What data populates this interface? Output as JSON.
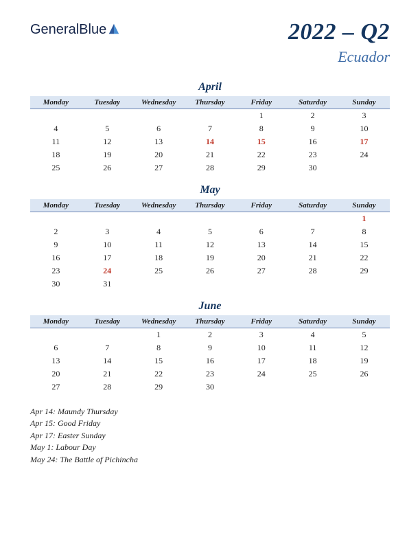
{
  "brand": {
    "part1": "General",
    "part2": "Blue"
  },
  "title": {
    "main": "2022 – Q2",
    "country": "Ecuador"
  },
  "title_colors": {
    "main": "#15365f",
    "sub": "#3d6ca8"
  },
  "header_bg": "#dce6f3",
  "header_border": "#6c86b3",
  "holiday_color": "#c0392b",
  "text_color": "#1e1e1e",
  "background_color": "#ffffff",
  "day_headers": [
    "Monday",
    "Tuesday",
    "Wednesday",
    "Thursday",
    "Friday",
    "Saturday",
    "Sunday"
  ],
  "months": [
    {
      "name": "April",
      "weeks": [
        [
          "",
          "",
          "",
          "",
          "1",
          "2",
          "3"
        ],
        [
          "4",
          "5",
          "6",
          "7",
          "8",
          "9",
          "10"
        ],
        [
          "11",
          "12",
          "13",
          "14",
          "15",
          "16",
          "17"
        ],
        [
          "18",
          "19",
          "20",
          "21",
          "22",
          "23",
          "24"
        ],
        [
          "25",
          "26",
          "27",
          "28",
          "29",
          "30",
          ""
        ]
      ],
      "holidays": [
        [
          2,
          3
        ],
        [
          2,
          4
        ],
        [
          2,
          6
        ]
      ]
    },
    {
      "name": "May",
      "weeks": [
        [
          "",
          "",
          "",
          "",
          "",
          "",
          "1"
        ],
        [
          "2",
          "3",
          "4",
          "5",
          "6",
          "7",
          "8"
        ],
        [
          "9",
          "10",
          "11",
          "12",
          "13",
          "14",
          "15"
        ],
        [
          "16",
          "17",
          "18",
          "19",
          "20",
          "21",
          "22"
        ],
        [
          "23",
          "24",
          "25",
          "26",
          "27",
          "28",
          "29"
        ],
        [
          "30",
          "31",
          "",
          "",
          "",
          "",
          ""
        ]
      ],
      "holidays": [
        [
          0,
          6
        ],
        [
          4,
          1
        ]
      ]
    },
    {
      "name": "June",
      "weeks": [
        [
          "",
          "",
          "1",
          "2",
          "3",
          "4",
          "5"
        ],
        [
          "6",
          "7",
          "8",
          "9",
          "10",
          "11",
          "12"
        ],
        [
          "13",
          "14",
          "15",
          "16",
          "17",
          "18",
          "19"
        ],
        [
          "20",
          "21",
          "22",
          "23",
          "24",
          "25",
          "26"
        ],
        [
          "27",
          "28",
          "29",
          "30",
          "",
          "",
          ""
        ]
      ],
      "holidays": []
    }
  ],
  "holiday_list": [
    "Apr 14: Maundy Thursday",
    "Apr 15: Good Friday",
    "Apr 17: Easter Sunday",
    "May 1: Labour Day",
    "May 24: The Battle of Pichincha"
  ]
}
